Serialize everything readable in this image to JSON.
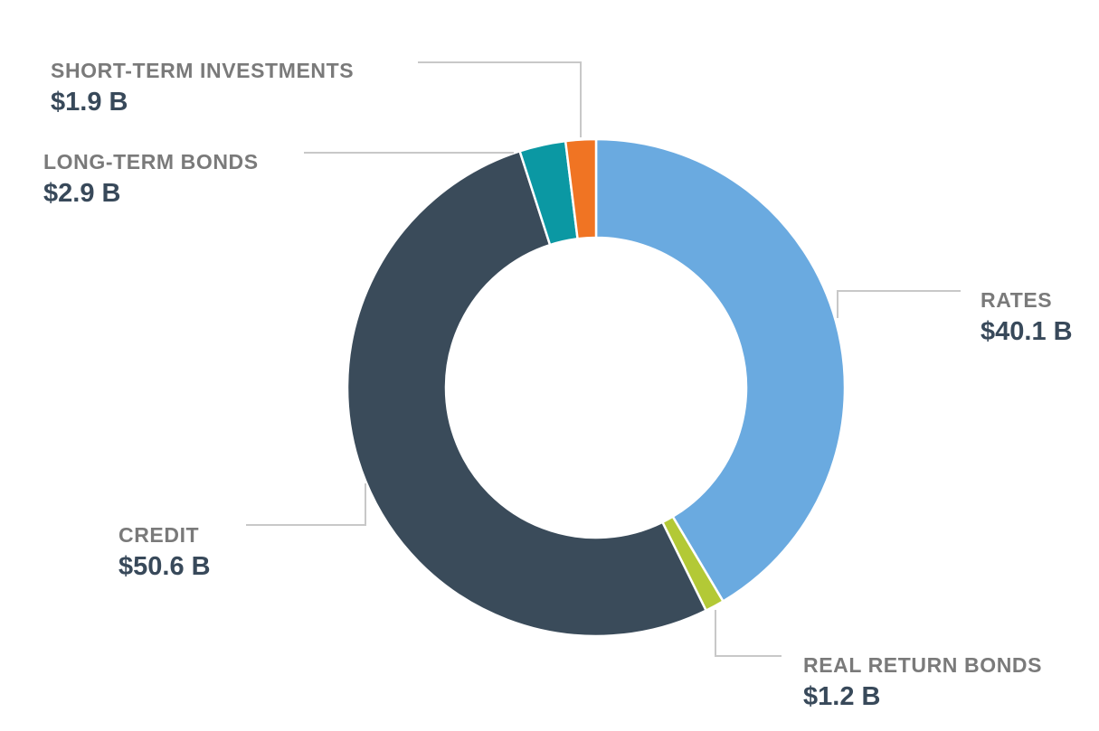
{
  "chart_data": {
    "type": "pie",
    "subtype": "donut",
    "title": "",
    "unit": "$ B",
    "start_angle": "12 o'clock, clockwise",
    "slices": [
      {
        "label": "RATES",
        "value": 40.1,
        "display": "$40.1 B",
        "color": "#6aaae0"
      },
      {
        "label": "REAL RETURN BONDS",
        "value": 1.2,
        "display": "$1.2 B",
        "color": "#b3c936"
      },
      {
        "label": "CREDIT",
        "value": 50.6,
        "display": "$50.6 B",
        "color": "#3a4b5a"
      },
      {
        "label": "LONG-TERM BONDS",
        "value": 2.9,
        "display": "$2.9 B",
        "color": "#0b98a3"
      },
      {
        "label": "SHORT-TERM INVESTMENTS",
        "value": 1.9,
        "display": "$1.9 B",
        "color": "#f07423"
      }
    ],
    "legend": "callout labels with leader lines"
  },
  "labels": {
    "rates": {
      "name": "RATES",
      "value": "$40.1 B"
    },
    "real_return_bonds": {
      "name": "REAL RETURN BONDS",
      "value": "$1.2 B"
    },
    "credit": {
      "name": "CREDIT",
      "value": "$50.6 B"
    },
    "long_term_bonds": {
      "name": "LONG-TERM BONDS",
      "value": "$2.9 B"
    },
    "short_term_investments": {
      "name": "SHORT-TERM INVESTMENTS",
      "value": "$1.9 B"
    }
  },
  "style": {
    "leader_color": "#c8c8c8"
  }
}
